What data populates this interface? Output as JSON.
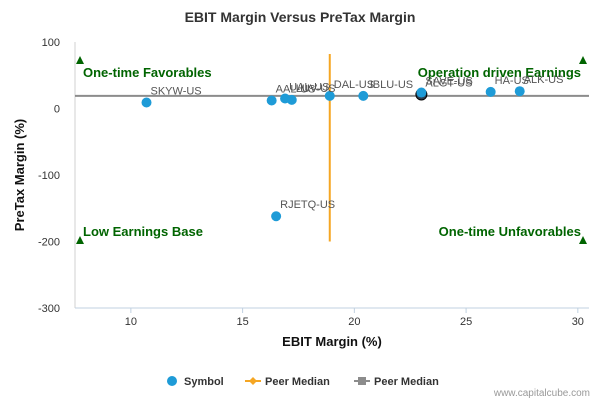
{
  "chart_data": {
    "type": "scatter",
    "title": "EBIT Margin Versus PreTax Margin",
    "xlabel": "EBIT Margin (%)",
    "ylabel": "PreTax Margin (%)",
    "xlim": [
      7.5,
      30.5
    ],
    "ylim": [
      -300,
      100
    ],
    "xticks": [
      10,
      15,
      20,
      25,
      30
    ],
    "yticks": [
      100,
      0,
      -100,
      -200,
      -300
    ],
    "xtick_labels": [
      "10",
      "15",
      "20",
      "25",
      "30"
    ],
    "ytick_labels": [
      "100",
      "0",
      "-100",
      "-200",
      "-300"
    ],
    "series": [
      {
        "name": "Symbol",
        "color": "#1e9bd7",
        "points": [
          {
            "label": "SKYW-US",
            "x": 10.7,
            "y": 9
          },
          {
            "label": "AAL-US",
            "x": 16.3,
            "y": 12
          },
          {
            "label": "UAL-US",
            "x": 16.9,
            "y": 15
          },
          {
            "label": "LUV-US",
            "x": 17.2,
            "y": 13
          },
          {
            "label": "DAL-US",
            "x": 18.9,
            "y": 19
          },
          {
            "label": "JBLU-US",
            "x": 20.4,
            "y": 19
          },
          {
            "label": "ALGT-US",
            "x": 23.0,
            "y": 21
          },
          {
            "label": "SAVE-US",
            "x": 23.0,
            "y": 24
          },
          {
            "label": "HA-US",
            "x": 26.1,
            "y": 25
          },
          {
            "label": "ALK-US",
            "x": 27.4,
            "y": 26
          },
          {
            "label": "RJETQ-US",
            "x": 16.5,
            "y": -162
          }
        ]
      }
    ],
    "peer_median_x": 18.9,
    "peer_median_y": 19,
    "highlight_point": "ALGT-US",
    "quadrant_labels": {
      "top_left": "One-time Favorables",
      "top_right": "Operation driven Earnings",
      "bottom_left": "Low Earnings Base",
      "bottom_right": "One-time Unfavorables"
    },
    "legend": {
      "placement": "bottom",
      "items": [
        {
          "label": "Symbol",
          "marker": "circle",
          "color": "#1e9bd7"
        },
        {
          "label": "Peer Median",
          "marker": "diamond-line",
          "color": "#f5a623"
        },
        {
          "label": "Peer Median",
          "marker": "square-line",
          "color": "#8c8c8c"
        }
      ]
    },
    "grid": false
  },
  "credit": "www.capitalcube.com",
  "colors": {
    "quadrant_text": "#006400",
    "marker_green": "#006400",
    "peer_median_x_line": "#f5a623",
    "peer_median_y_line": "#8c8c8c",
    "highlight_fill": "#2c3e50"
  }
}
